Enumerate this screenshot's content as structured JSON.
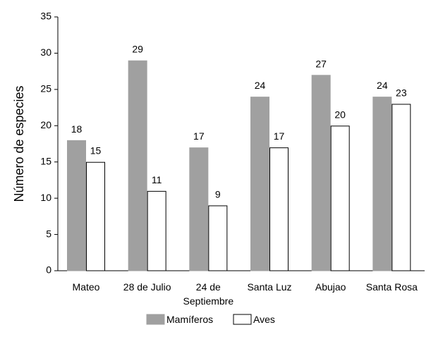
{
  "chart_data": {
    "type": "bar",
    "title": "",
    "xlabel": "",
    "ylabel": "Número de especies",
    "ylim": [
      0,
      35
    ],
    "yticks": [
      0,
      5,
      10,
      15,
      20,
      25,
      30,
      35
    ],
    "grid": false,
    "legend_position": "bottom",
    "categories": [
      [
        "Mateo"
      ],
      [
        "28 de Julio"
      ],
      [
        "24 de",
        "Septiembre"
      ],
      [
        "Santa Luz"
      ],
      [
        "Abujao"
      ],
      [
        "Santa Rosa"
      ]
    ],
    "series": [
      {
        "name": "Mamíferos",
        "values": [
          18,
          29,
          17,
          24,
          27,
          24
        ],
        "color": "#a0a0a0",
        "stroke": "#a0a0a0"
      },
      {
        "name": "Aves",
        "values": [
          15,
          11,
          9,
          17,
          20,
          23
        ],
        "color": "#ffffff",
        "stroke": "#000000"
      }
    ]
  }
}
